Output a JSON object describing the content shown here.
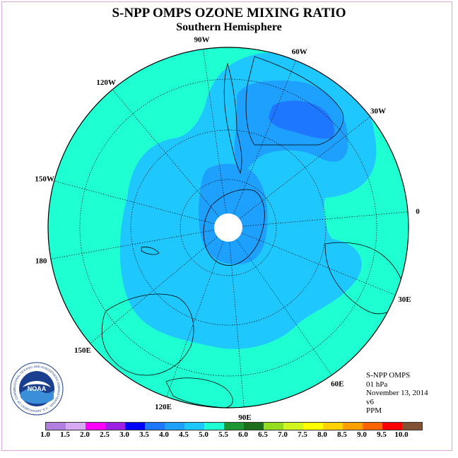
{
  "title": "S-NPP OMPS OZONE MIXING RATIO",
  "subtitle": "Southern Hemisphere",
  "longitude_labels": [
    "90W",
    "60W",
    "30W",
    "0",
    "30E",
    "60E",
    "90E",
    "120E",
    "150E",
    "180",
    "150W",
    "120W"
  ],
  "info": {
    "instrument": "S-NPP OMPS",
    "level": "01 hPa",
    "date": "November 13, 2014",
    "version": "v6",
    "units": "PPM"
  },
  "logo": {
    "text": "NOAA",
    "ring_text": "NATIONAL OCEANIC AND ATMOSPHERIC ADMINISTRATION · U.S. DEPARTMENT OF COMMERCE"
  },
  "colorbar": {
    "ticks": [
      "1.0",
      "1.5",
      "2.0",
      "2.5",
      "3.0",
      "3.5",
      "4.0",
      "4.5",
      "5.0",
      "5.5",
      "6.0",
      "6.5",
      "7.0",
      "7.5",
      "8.0",
      "8.5",
      "9.0",
      "9.5",
      "10.0"
    ],
    "colors": [
      "#b07fe0",
      "#d7a9f5",
      "#ff00ff",
      "#9e1ee6",
      "#0000ff",
      "#1e78ff",
      "#1ea0ff",
      "#1ec8ff",
      "#1effd2",
      "#1e9632",
      "#1e6e1e",
      "#96dc1e",
      "#d2f51e",
      "#ffff00",
      "#ffd200",
      "#ffa000",
      "#ff6400",
      "#ff0000",
      "#825032"
    ]
  },
  "map_levels": {
    "background": "#1effd2",
    "level_4_0_4_5": "#1ec8ff",
    "level_3_5_4_0": "#1ea0ff",
    "level_3_0_3_5": "#1e78ff",
    "pole_gap": "#ffffff"
  }
}
